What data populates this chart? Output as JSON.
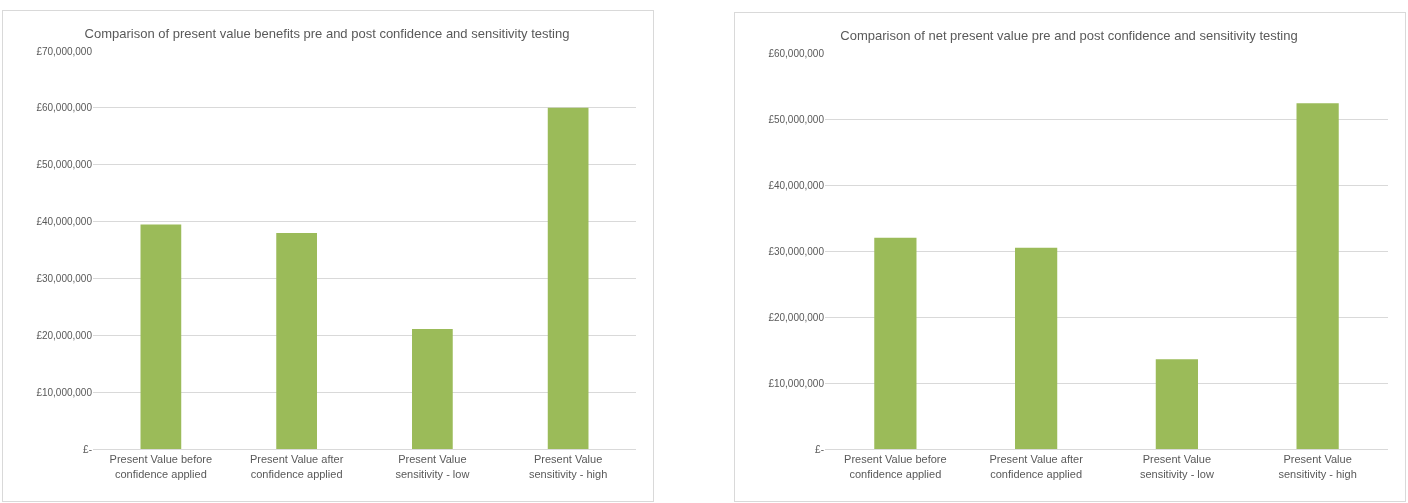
{
  "chart_data": [
    {
      "type": "bar",
      "title": "Comparison of present value benefits pre and post confidence and sensitivity testing",
      "categories": [
        "Present Value before confidence applied",
        "Present Value after confidence applied",
        "Present Value sensitivity - low",
        "Present Value sensitivity - high"
      ],
      "values": [
        39500000,
        38000000,
        21100000,
        60000000
      ],
      "color": "#9bbb59",
      "ylim": [
        0,
        70000000
      ],
      "yticks": [
        {
          "value": 0,
          "label": "£-"
        },
        {
          "value": 10000000,
          "label": "£10,000,000"
        },
        {
          "value": 20000000,
          "label": "£20,000,000"
        },
        {
          "value": 30000000,
          "label": "£30,000,000"
        },
        {
          "value": 40000000,
          "label": "£40,000,000"
        },
        {
          "value": 50000000,
          "label": "£50,000,000"
        },
        {
          "value": 60000000,
          "label": "£60,000,000"
        },
        {
          "value": 70000000,
          "label": "£70,000,000"
        }
      ],
      "grid": "y",
      "legend": false
    },
    {
      "type": "bar",
      "title": "Comparison of net present value pre and post confidence and sensitivity testing",
      "categories": [
        "Present Value before confidence applied",
        "Present Value after confidence applied",
        "Present Value sensitivity - low",
        "Present Value sensitivity - high"
      ],
      "values": [
        32000000,
        30500000,
        13600000,
        52400000
      ],
      "color": "#9bbb59",
      "ylim": [
        0,
        60000000
      ],
      "yticks": [
        {
          "value": 0,
          "label": "£-"
        },
        {
          "value": 10000000,
          "label": "£10,000,000"
        },
        {
          "value": 20000000,
          "label": "£20,000,000"
        },
        {
          "value": 30000000,
          "label": "£30,000,000"
        },
        {
          "value": 40000000,
          "label": "£40,000,000"
        },
        {
          "value": 50000000,
          "label": "£50,000,000"
        },
        {
          "value": 60000000,
          "label": "£60,000,000"
        }
      ],
      "grid": "y",
      "legend": false
    }
  ]
}
